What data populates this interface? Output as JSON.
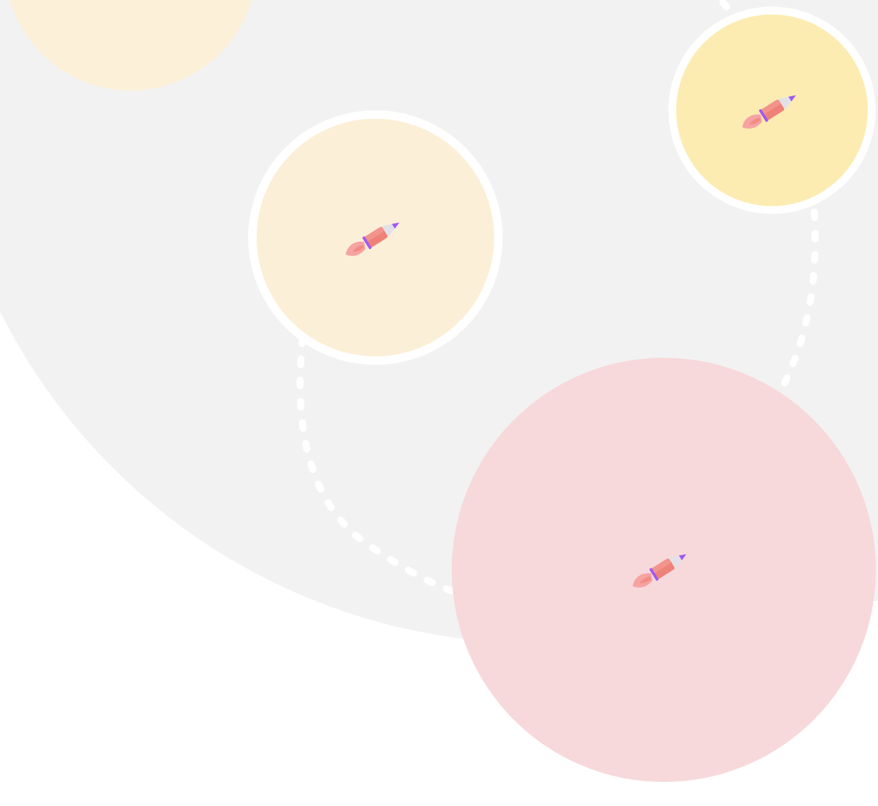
{
  "colors": {
    "page_background": "#ffffff",
    "backdrop": "#f2f2f2",
    "path_dashes": "#ffffff",
    "ring": "#ffffff",
    "circle_pale_peach": "#fcf0d8",
    "circle_cream": "#fcefd7",
    "circle_yellow": "#fcecb1",
    "circle_pink": "#f7d9db",
    "rocket_body": "#ef8278",
    "rocket_body_light": "#f3948c",
    "rocket_nose": "#e3e1e8",
    "rocket_tip": "#a259f0",
    "rocket_band": "#a259f0",
    "rocket_flame": "#f6a3a2"
  },
  "nodes": [
    {
      "name": "circle-partial-top-left",
      "color_key": "circle_pale_peach",
      "ringed": false,
      "has_rocket": false
    },
    {
      "name": "circle-middle-left",
      "color_key": "circle_cream",
      "ringed": true,
      "has_rocket": true
    },
    {
      "name": "circle-top-right",
      "color_key": "circle_yellow",
      "ringed": true,
      "has_rocket": true
    },
    {
      "name": "circle-bottom-right",
      "color_key": "circle_pink",
      "ringed": false,
      "has_rocket": true
    }
  ],
  "rocket_icon": "rocket-icon"
}
